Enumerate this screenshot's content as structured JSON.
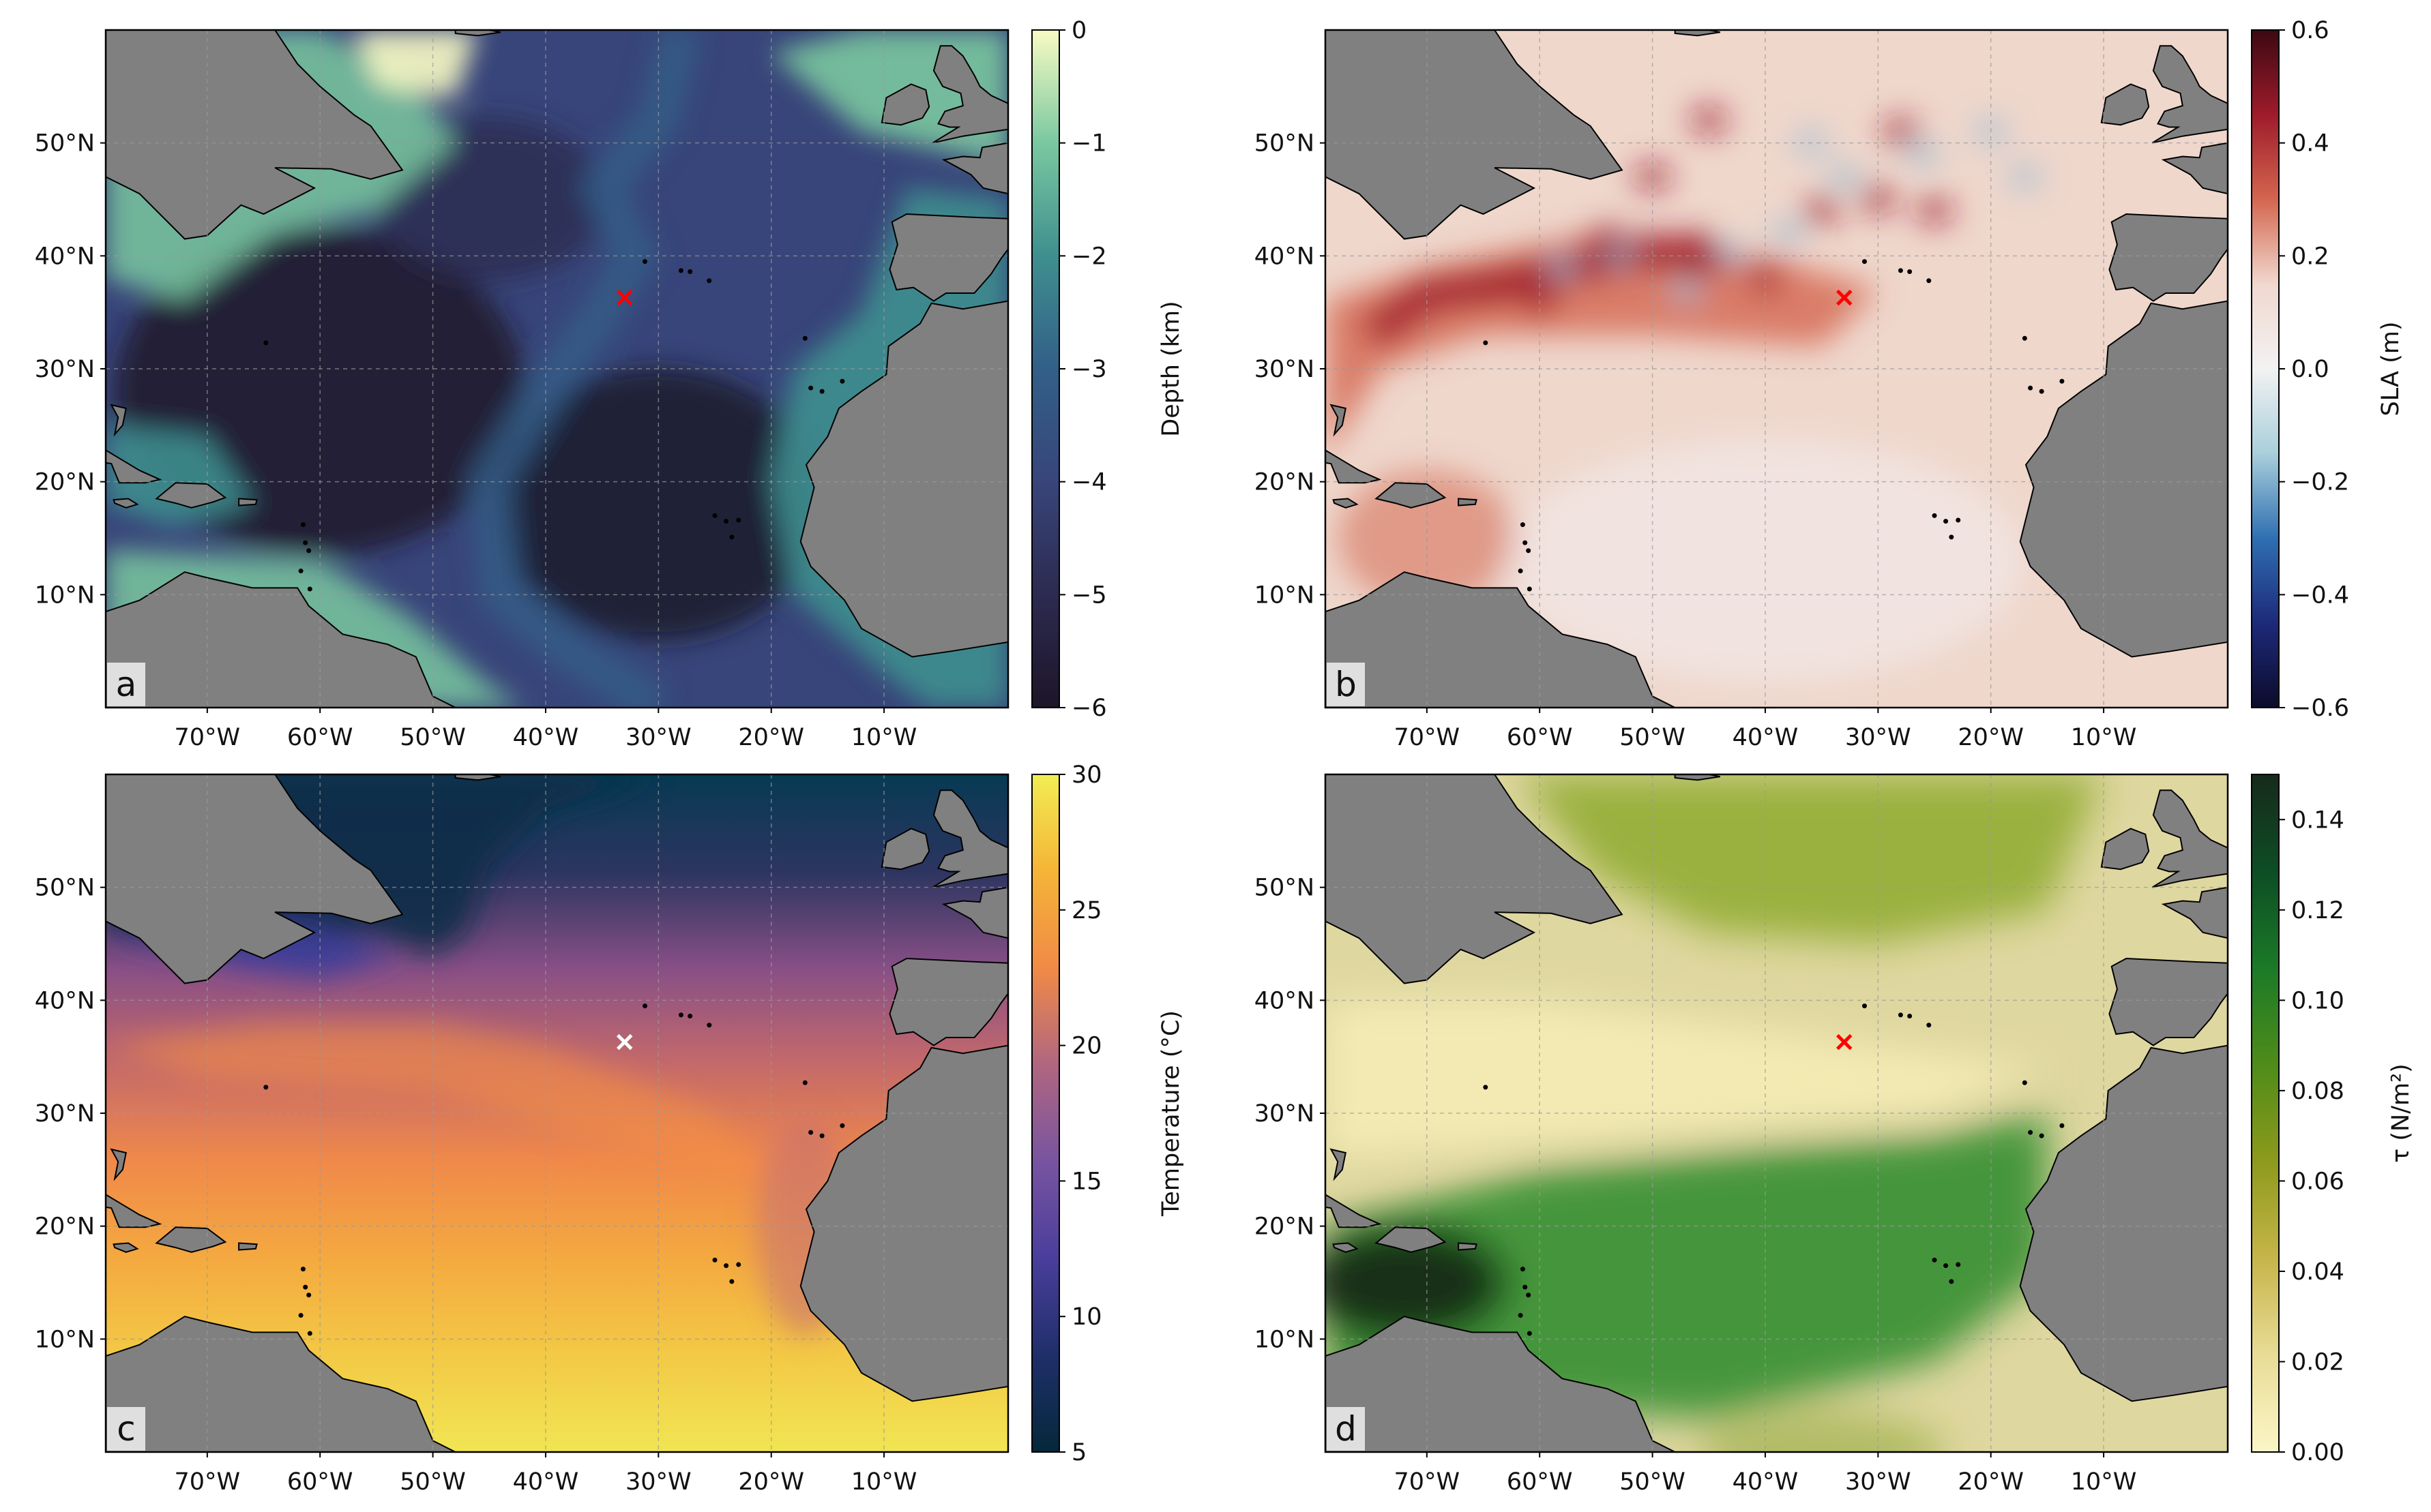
{
  "figure": {
    "lat_ticks": [
      "10°N",
      "20°N",
      "30°N",
      "40°N",
      "50°N"
    ],
    "lon_ticks": [
      "70°W",
      "60°W",
      "50°W",
      "40°W",
      "30°W",
      "20°W",
      "10°W"
    ],
    "map_extent": {
      "lon": [
        -79,
        1
      ],
      "lat": [
        0,
        60
      ]
    },
    "site_marker": {
      "lon": -33,
      "lat": 36.3
    },
    "land_color": "#808080"
  },
  "panels": [
    {
      "id": "a",
      "label": "a",
      "field": "bathymetry",
      "marker_color": "#ff0000",
      "colorbar": {
        "label": "Depth (km)",
        "ticks": [
          "0",
          "−1",
          "−2",
          "−3",
          "−4",
          "−5",
          "−6"
        ],
        "range": [
          -6,
          0
        ],
        "colors": [
          "#f8fbc4",
          "#7ac8a0",
          "#3f8f8f",
          "#325f88",
          "#38457a",
          "#2c2a50",
          "#1d1528"
        ]
      }
    },
    {
      "id": "b",
      "label": "b",
      "field": "sea level anomaly",
      "marker_color": "#ff0000",
      "colorbar": {
        "label": "SLA (m)",
        "ticks": [
          "0.6",
          "0.4",
          "0.2",
          "0.0",
          "−0.2",
          "−0.4",
          "−0.6"
        ],
        "range": [
          -0.6,
          0.6
        ],
        "colors": [
          "#3c0912",
          "#9e1b2b",
          "#d4664f",
          "#f0d8cf",
          "#f2f2f2",
          "#a9cfdb",
          "#2f6fb2",
          "#1d2a7a",
          "#0c0b2a"
        ]
      }
    },
    {
      "id": "c",
      "label": "c",
      "field": "sea surface temperature",
      "marker_color": "#ffffff",
      "colorbar": {
        "label": "Temperature (°C)",
        "ticks": [
          "30",
          "25",
          "20",
          "15",
          "10",
          "5"
        ],
        "range": [
          5,
          30
        ],
        "colors": [
          "#f1ed53",
          "#f5b437",
          "#f08a47",
          "#b06680",
          "#7854a0",
          "#4a3e9c",
          "#1f2f6a",
          "#05283a"
        ]
      }
    },
    {
      "id": "d",
      "label": "d",
      "field": "wind stress",
      "marker_color": "#ff0000",
      "colorbar": {
        "label": "τ (N/m²)",
        "ticks": [
          "0.14",
          "0.12",
          "0.10",
          "0.08",
          "0.06",
          "0.04",
          "0.02",
          "0.00"
        ],
        "range": [
          0,
          0.15
        ],
        "colors": [
          "#172a1b",
          "#0d4d25",
          "#1b7a27",
          "#4f8c1a",
          "#8d9a1b",
          "#c6b54a",
          "#e8dc96",
          "#fbf6c7"
        ]
      }
    }
  ]
}
